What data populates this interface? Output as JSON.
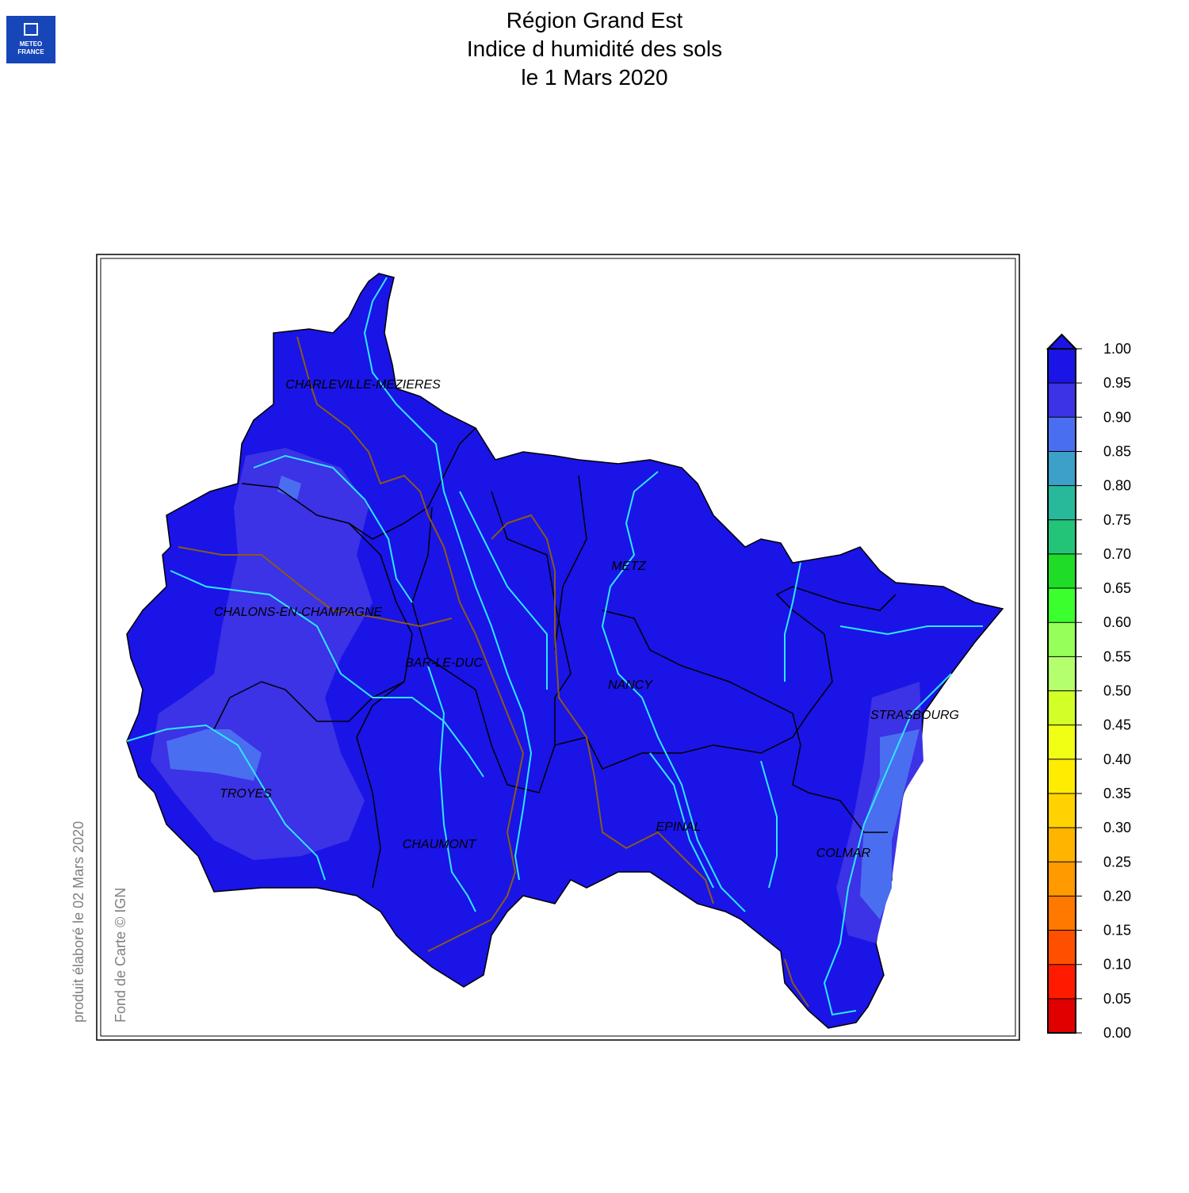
{
  "logo": {
    "lines": [
      "METEO",
      "FRANCE"
    ]
  },
  "header": {
    "title": "Région Grand Est",
    "subtitle": "Indice d humidité des sols",
    "date": "le 1 Mars 2020"
  },
  "map": {
    "cities": [
      "CHARLEVILLE-MEZIERES",
      "CHALONS-EN-CHAMPAGNE",
      "BAR-LE-DUC",
      "METZ",
      "NANCY",
      "STRASBOURG",
      "TROYES",
      "CHAUMONT",
      "EPINAL",
      "COLMAR"
    ]
  },
  "credits": {
    "produced": "produit élaboré le 02 Mars 2020",
    "basemap": "Fond de Carte © IGN"
  },
  "colorbar": {
    "ticks": [
      {
        "value": 0,
        "label": "0.00"
      },
      {
        "value": 0.05,
        "label": "0.05"
      },
      {
        "value": 0.1,
        "label": "0.10"
      },
      {
        "value": 0.15,
        "label": "0.15"
      },
      {
        "value": 0.2,
        "label": "0.20"
      },
      {
        "value": 0.25,
        "label": "0.25"
      },
      {
        "value": 0.3,
        "label": "0.30"
      },
      {
        "value": 0.35,
        "label": "0.35"
      },
      {
        "value": 0.4,
        "label": "0.40"
      },
      {
        "value": 0.45,
        "label": "0.45"
      },
      {
        "value": 0.5,
        "label": "0.50"
      },
      {
        "value": 0.55,
        "label": "0.55"
      },
      {
        "value": 0.6,
        "label": "0.60"
      },
      {
        "value": 0.65,
        "label": "0.65"
      },
      {
        "value": 0.7,
        "label": "0.70"
      },
      {
        "value": 0.75,
        "label": "0.75"
      },
      {
        "value": 0.8,
        "label": "0.80"
      },
      {
        "value": 0.85,
        "label": "0.85"
      },
      {
        "value": 0.9,
        "label": "0.90"
      },
      {
        "value": 0.95,
        "label": "0.95"
      },
      {
        "value": 1,
        "label": "1.00"
      }
    ],
    "colors": [
      "#e00000",
      "#ff1a00",
      "#ff5000",
      "#ff7800",
      "#ff9a00",
      "#ffb400",
      "#ffd200",
      "#ffec00",
      "#f0ff14",
      "#d2ff28",
      "#b4ff6e",
      "#96ff5a",
      "#3cff2e",
      "#1edc28",
      "#23c378",
      "#28b99b",
      "#3ca0c8",
      "#4a6ef0",
      "#3c32e6",
      "#1a14e6"
    ],
    "over_color": "#1a14e6"
  }
}
